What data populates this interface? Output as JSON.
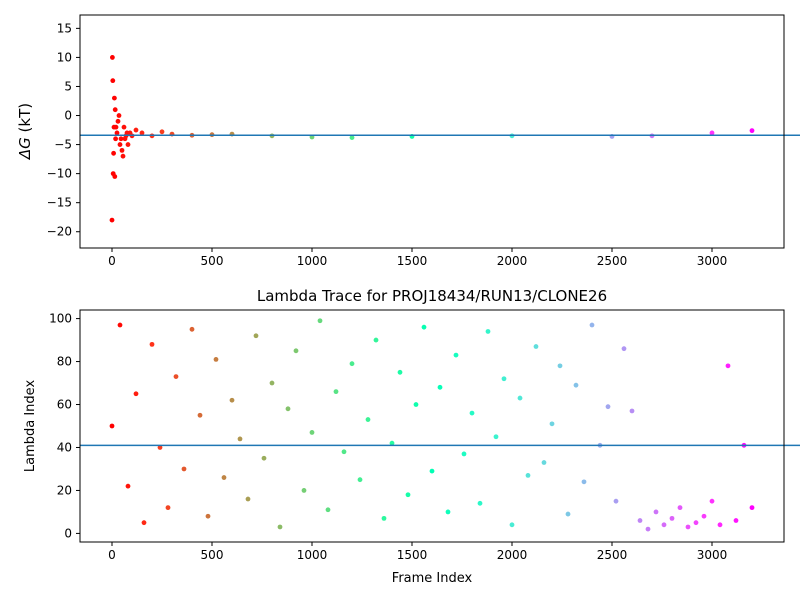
{
  "chart_data": [
    {
      "type": "scatter",
      "title": "",
      "xlabel": "",
      "ylabel": "ΔG (kT)",
      "ylabel_symbol": "ΔG",
      "ylabel_unit": "(kT)",
      "xlim": [
        -160,
        3360
      ],
      "ylim": [
        -22.8,
        17.3
      ],
      "xticks": [
        0,
        500,
        1000,
        1500,
        2000,
        2500,
        3000
      ],
      "yticks": [
        15,
        10,
        5,
        0,
        -5,
        -10,
        -15,
        -20
      ],
      "hline": -3.4,
      "colormap": "rainbow",
      "series": [
        {
          "x": [
            0,
            2,
            4,
            6,
            8,
            10,
            12,
            14,
            16,
            18,
            20,
            25,
            30,
            35,
            40,
            45,
            50,
            55,
            60,
            65,
            70,
            75,
            80,
            90,
            100,
            120,
            150,
            200,
            250,
            300,
            400,
            500,
            600,
            800,
            1000,
            1200,
            1500,
            2000,
            2500,
            2700,
            3000,
            3200
          ],
          "y": [
            -18,
            10,
            6,
            -10,
            -6.5,
            -2,
            3,
            -10.5,
            1,
            -4,
            -2,
            -3,
            -1,
            0,
            -5,
            -4,
            -6,
            -7,
            -2,
            -4,
            -3.5,
            -3,
            -5,
            -3,
            -3.5,
            -2.5,
            -3,
            -3.5,
            -2.8,
            -3.2,
            -3.4,
            -3.3,
            -3.2,
            -3.5,
            -3.7,
            -3.8,
            -3.6,
            -3.5,
            -3.6,
            -3.5,
            -3.0,
            -2.6
          ]
        }
      ]
    },
    {
      "type": "scatter",
      "title": "Lambda Trace for PROJ18434/RUN13/CLONE26",
      "xlabel": "Frame Index",
      "ylabel": "Lambda Index",
      "xlim": [
        -160,
        3360
      ],
      "ylim": [
        -4,
        104
      ],
      "xticks": [
        0,
        500,
        1000,
        1500,
        2000,
        2500,
        3000
      ],
      "yticks": [
        0,
        20,
        40,
        60,
        80,
        100
      ],
      "hline": 41,
      "colormap": "rainbow",
      "series": [
        {
          "x": [
            0,
            40,
            80,
            120,
            160,
            200,
            240,
            280,
            320,
            360,
            400,
            440,
            480,
            520,
            560,
            600,
            640,
            680,
            720,
            760,
            800,
            840,
            880,
            920,
            960,
            1000,
            1040,
            1080,
            1120,
            1160,
            1200,
            1240,
            1280,
            1320,
            1360,
            1400,
            1440,
            1480,
            1520,
            1560,
            1600,
            1640,
            1680,
            1720,
            1760,
            1800,
            1840,
            1880,
            1920,
            1960,
            2000,
            2040,
            2080,
            2120,
            2160,
            2200,
            2240,
            2280,
            2320,
            2360,
            2400,
            2440,
            2480,
            2520,
            2560,
            2600,
            2640,
            2680,
            2720,
            2760,
            2800,
            2840,
            2880,
            2920,
            2960,
            3000,
            3040,
            3080,
            3120,
            3160,
            3200
          ],
          "y": [
            50,
            97,
            22,
            65,
            5,
            88,
            40,
            12,
            73,
            30,
            95,
            55,
            8,
            81,
            26,
            62,
            44,
            16,
            92,
            35,
            70,
            3,
            58,
            85,
            20,
            47,
            99,
            11,
            66,
            38,
            79,
            25,
            53,
            90,
            7,
            42,
            75,
            18,
            60,
            96,
            29,
            68,
            10,
            83,
            37,
            56,
            14,
            94,
            45,
            72,
            4,
            63,
            27,
            87,
            33,
            51,
            78,
            9,
            69,
            24,
            97,
            41,
            59,
            15,
            86,
            57,
            6,
            2,
            10,
            4,
            7,
            12,
            3,
            5,
            8,
            15,
            4,
            78,
            6,
            41,
            12
          ]
        }
      ]
    }
  ]
}
